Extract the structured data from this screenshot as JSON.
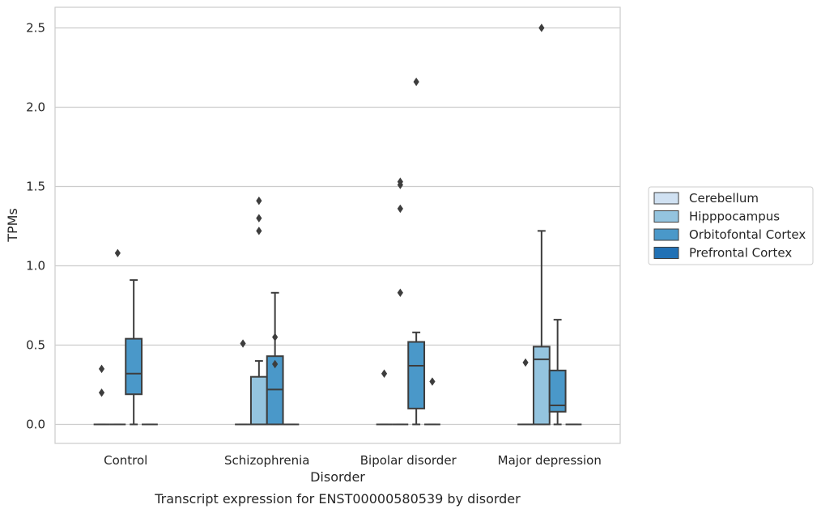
{
  "chart_data": {
    "type": "boxplot",
    "title": "",
    "caption": "Transcript expression for ENST00000580539 by disorder",
    "xlabel": "Disorder",
    "ylabel": "TPMs",
    "ylim": [
      -0.12,
      2.63
    ],
    "yticks": [
      0.0,
      0.5,
      1.0,
      1.5,
      2.0,
      2.5
    ],
    "ytick_labels": [
      "0.0",
      "0.5",
      "1.0",
      "1.5",
      "2.0",
      "2.5"
    ],
    "grid": "horizontal",
    "legend_placement": "right",
    "categories": [
      "Control",
      "Schizophrenia",
      "Bipolar disorder",
      "Major depression"
    ],
    "series": [
      {
        "name": "Cerebellum",
        "color": "#d0e1f2",
        "boxes": [
          {
            "q1": 0.0,
            "median": 0.0,
            "q3": 0.0,
            "whisker_low": 0.0,
            "whisker_high": 0.0,
            "outliers": [
              0.35,
              0.2
            ]
          },
          {
            "q1": 0.0,
            "median": 0.0,
            "q3": 0.0,
            "whisker_low": 0.0,
            "whisker_high": 0.0,
            "outliers": [
              0.51
            ]
          },
          {
            "q1": 0.0,
            "median": 0.0,
            "q3": 0.0,
            "whisker_low": 0.0,
            "whisker_high": 0.0,
            "outliers": [
              0.32
            ]
          },
          {
            "q1": 0.0,
            "median": 0.0,
            "q3": 0.0,
            "whisker_low": 0.0,
            "whisker_high": 0.0,
            "outliers": [
              0.39
            ]
          }
        ]
      },
      {
        "name": "Hipppocampus",
        "color": "#94c4df",
        "boxes": [
          {
            "q1": 0.0,
            "median": 0.0,
            "q3": 0.0,
            "whisker_low": 0.0,
            "whisker_high": 0.0,
            "outliers": [
              1.08
            ]
          },
          {
            "q1": 0.0,
            "median": 0.0,
            "q3": 0.3,
            "whisker_low": 0.0,
            "whisker_high": 0.4,
            "outliers": [
              1.41,
              1.3,
              1.22
            ]
          },
          {
            "q1": 0.0,
            "median": 0.0,
            "q3": 0.0,
            "whisker_low": 0.0,
            "whisker_high": 0.0,
            "outliers": [
              0.83,
              1.36,
              1.51,
              1.53
            ]
          },
          {
            "q1": 0.0,
            "median": 0.41,
            "q3": 0.49,
            "whisker_low": 0.0,
            "whisker_high": 1.22,
            "outliers": [
              2.5
            ]
          }
        ]
      },
      {
        "name": "Orbitofontal Cortex",
        "color": "#4a98c9",
        "boxes": [
          {
            "q1": 0.19,
            "median": 0.32,
            "q3": 0.54,
            "whisker_low": 0.0,
            "whisker_high": 0.91,
            "outliers": []
          },
          {
            "q1": 0.0,
            "median": 0.22,
            "q3": 0.43,
            "whisker_low": 0.0,
            "whisker_high": 0.83,
            "outliers": [
              0.38,
              0.55
            ]
          },
          {
            "q1": 0.1,
            "median": 0.37,
            "q3": 0.52,
            "whisker_low": 0.0,
            "whisker_high": 0.58,
            "outliers": [
              2.16
            ]
          },
          {
            "q1": 0.08,
            "median": 0.12,
            "q3": 0.34,
            "whisker_low": 0.0,
            "whisker_high": 0.66,
            "outliers": []
          }
        ]
      },
      {
        "name": "Prefrontal Cortex",
        "color": "#2171b5",
        "boxes": [
          {
            "q1": 0.0,
            "median": 0.0,
            "q3": 0.0,
            "whisker_low": 0.0,
            "whisker_high": 0.0,
            "outliers": []
          },
          {
            "q1": 0.0,
            "median": 0.0,
            "q3": 0.0,
            "whisker_low": 0.0,
            "whisker_high": 0.0,
            "outliers": []
          },
          {
            "q1": 0.0,
            "median": 0.0,
            "q3": 0.0,
            "whisker_low": 0.0,
            "whisker_high": 0.0,
            "outliers": [
              0.27
            ]
          },
          {
            "q1": 0.0,
            "median": 0.0,
            "q3": 0.0,
            "whisker_low": 0.0,
            "whisker_high": 0.0,
            "outliers": []
          }
        ]
      }
    ]
  }
}
